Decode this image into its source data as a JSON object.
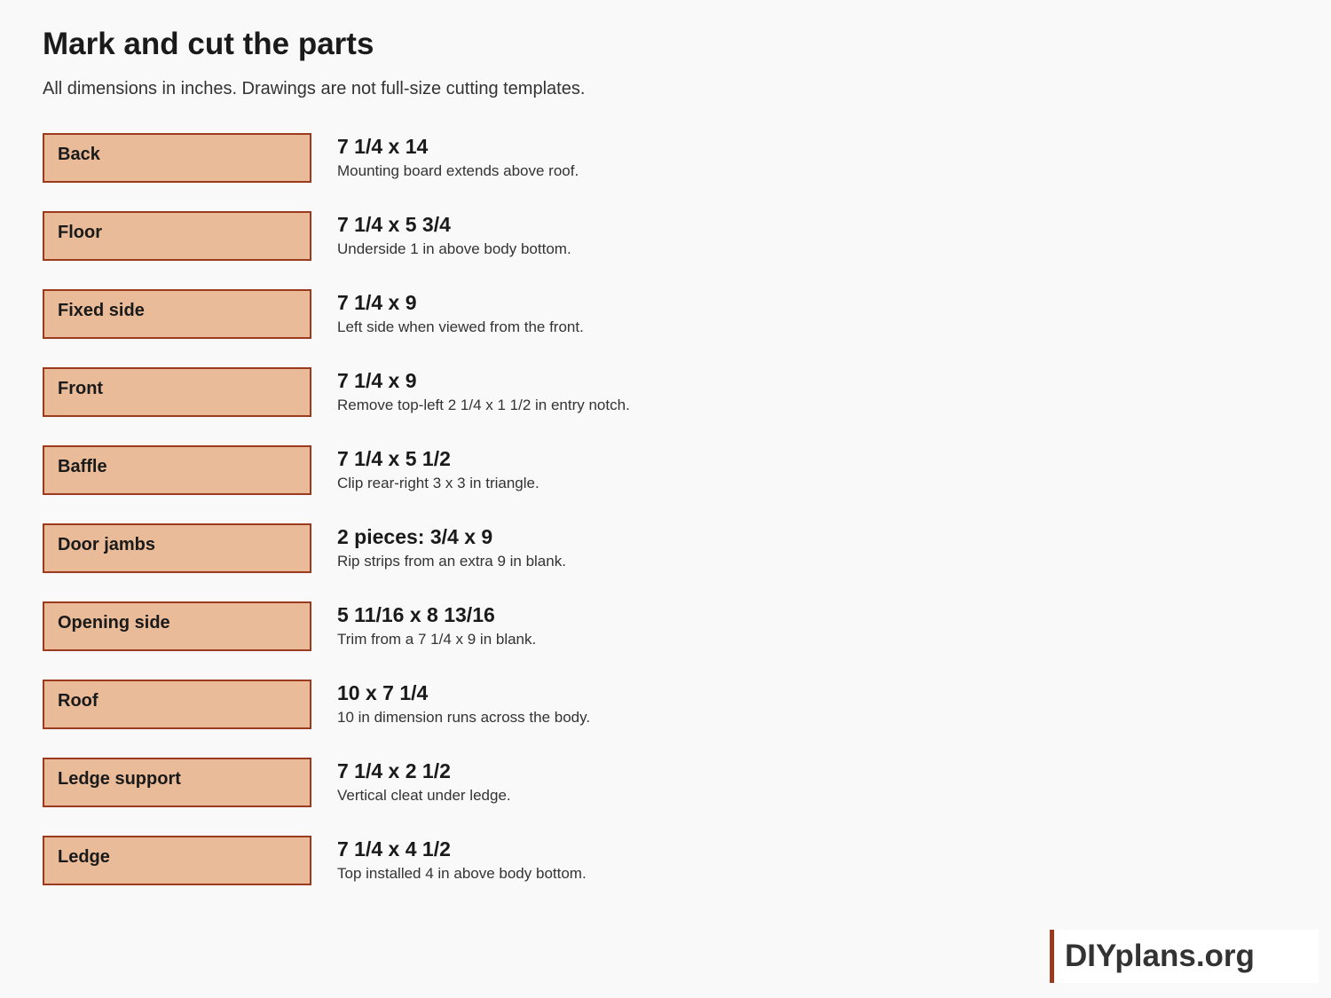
{
  "header": {
    "title": "Mark and cut the parts",
    "subtitle": "All dimensions in inches. Drawings are not full-size cutting templates."
  },
  "parts": [
    {
      "label": "Back",
      "size": "7 1/4 x 14",
      "note": "Mounting board extends above roof."
    },
    {
      "label": "Floor",
      "size": "7 1/4 x 5 3/4",
      "note": "Underside 1 in above body bottom."
    },
    {
      "label": "Fixed side",
      "size": "7 1/4 x 9",
      "note": "Left side when viewed from the front."
    },
    {
      "label": "Front",
      "size": "7 1/4 x 9",
      "note": "Remove top-left 2 1/4 x 1 1/2 in entry notch."
    },
    {
      "label": "Baffle",
      "size": "7 1/4 x 5 1/2",
      "note": "Clip rear-right 3 x 3 in triangle."
    },
    {
      "label": "Door jambs",
      "size": "2 pieces: 3/4 x 9",
      "note": "Rip strips from an extra 9 in blank."
    },
    {
      "label": "Opening side",
      "size": "5 11/16 x 8 13/16",
      "note": "Trim from a 7 1/4 x 9 in blank."
    },
    {
      "label": "Roof",
      "size": "10 x 7 1/4",
      "note": "10 in dimension runs across the body."
    },
    {
      "label": "Ledge support",
      "size": "7 1/4 x 2 1/2",
      "note": "Vertical cleat under ledge."
    },
    {
      "label": "Ledge",
      "size": "7 1/4 x 4 1/2",
      "note": "Top installed 4 in above body bottom."
    }
  ],
  "brand": "DIYplans.org"
}
